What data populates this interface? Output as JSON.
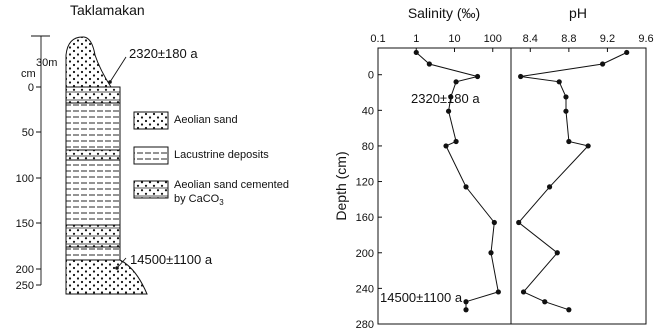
{
  "left_panel": {
    "title": "Taklamakan",
    "scale_label": "30m",
    "unit_label": "cm",
    "depth_ticks": [
      "0",
      "50",
      "100",
      "150",
      "200",
      "250"
    ],
    "age_top": "2320±180 a",
    "age_bottom": "14500±1100 a",
    "legend": [
      {
        "key": "aeolian",
        "label_lines": [
          "Aeolian sand"
        ]
      },
      {
        "key": "lacustrine",
        "label_lines": [
          "Lacustrine deposits"
        ]
      },
      {
        "key": "cemented",
        "label_lines": [
          "Aeolian sand cemented",
          "by CaCO",
          "3"
        ]
      }
    ]
  },
  "chart_data": [
    {
      "type": "line",
      "title": "Salinity (‰)",
      "ylabel": "Depth (cm)",
      "x_scale": "log",
      "xlim": [
        0.1,
        300
      ],
      "x_tick_labels": [
        "0.1",
        "1",
        "10",
        "100"
      ],
      "x_ticks": [
        0.1,
        1,
        10,
        100
      ],
      "ylim": [
        -30,
        280
      ],
      "y_inverted": true,
      "y_ticks": [
        0,
        40,
        80,
        120,
        160,
        200,
        240,
        280
      ],
      "annotations": [
        "2320±180 a",
        "14500±1100 a"
      ],
      "points": [
        {
          "x": 1.0,
          "y": -25
        },
        {
          "x": 2.2,
          "y": -12
        },
        {
          "x": 40,
          "y": 2
        },
        {
          "x": 11,
          "y": 8
        },
        {
          "x": 8,
          "y": 25
        },
        {
          "x": 7,
          "y": 41
        },
        {
          "x": 11,
          "y": 75
        },
        {
          "x": 6,
          "y": 80
        },
        {
          "x": 20,
          "y": 126
        },
        {
          "x": 110,
          "y": 166
        },
        {
          "x": 90,
          "y": 200
        },
        {
          "x": 140,
          "y": 244
        },
        {
          "x": 20,
          "y": 255
        },
        {
          "x": 20,
          "y": 264
        }
      ]
    },
    {
      "type": "line",
      "title": "pH",
      "x_scale": "linear",
      "xlim": [
        8.2,
        9.6
      ],
      "x_tick_labels": [
        "8.4",
        "8.8",
        "9.2",
        "9.6"
      ],
      "x_ticks": [
        8.4,
        8.8,
        9.2,
        9.6
      ],
      "ylim": [
        -30,
        280
      ],
      "y_inverted": true,
      "points": [
        {
          "x": 9.4,
          "y": -25
        },
        {
          "x": 9.15,
          "y": -12
        },
        {
          "x": 8.3,
          "y": 2
        },
        {
          "x": 8.7,
          "y": 8
        },
        {
          "x": 8.77,
          "y": 25
        },
        {
          "x": 8.77,
          "y": 41
        },
        {
          "x": 8.8,
          "y": 75
        },
        {
          "x": 9.0,
          "y": 80
        },
        {
          "x": 8.6,
          "y": 126
        },
        {
          "x": 8.28,
          "y": 166
        },
        {
          "x": 8.68,
          "y": 200
        },
        {
          "x": 8.33,
          "y": 244
        },
        {
          "x": 8.55,
          "y": 255
        },
        {
          "x": 8.8,
          "y": 264
        }
      ]
    }
  ]
}
